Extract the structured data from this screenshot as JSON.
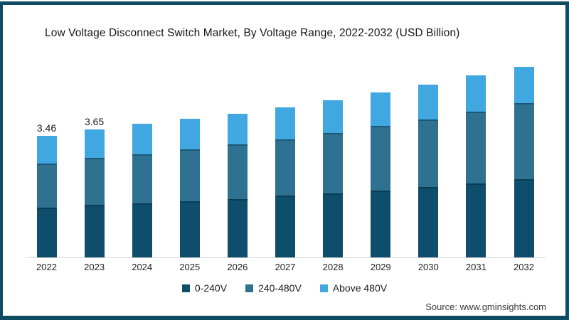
{
  "title": "Low Voltage Disconnect Switch Market, By Voltage Range, 2022-2032 (USD Billion)",
  "source": "Source: www.gminsights.com",
  "colors": {
    "frame_border": "#0f4c64",
    "axis_line": "#d8d8d8",
    "series_dark": "#0e4d6b",
    "series_medium": "#2f7191",
    "series_light": "#41a7e1"
  },
  "legend": [
    {
      "label": "0-240V",
      "color": "#0e4d6b"
    },
    {
      "label": "240-480V",
      "color": "#2f7191"
    },
    {
      "label": "Above 480V",
      "color": "#41a7e1"
    }
  ],
  "chart_data": {
    "type": "bar",
    "stacked": true,
    "title": "Low Voltage Disconnect Switch Market, By Voltage Range, 2022-2032 (USD Billion)",
    "xlabel": "",
    "ylabel": "USD Billion",
    "grid": false,
    "legend_position": "bottom",
    "categories": [
      "2022",
      "2023",
      "2024",
      "2025",
      "2026",
      "2027",
      "2028",
      "2029",
      "2030",
      "2031",
      "2032"
    ],
    "series": [
      {
        "name": "0-240V",
        "color": "#0e4d6b",
        "edge": "#0a3d54",
        "values": [
          1.42,
          1.5,
          1.54,
          1.6,
          1.66,
          1.77,
          1.82,
          1.91,
          2.01,
          2.11,
          2.22
        ]
      },
      {
        "name": "240-480V",
        "color": "#2f7191",
        "edge": "#1d5878",
        "values": [
          1.25,
          1.34,
          1.4,
          1.47,
          1.55,
          1.6,
          1.73,
          1.83,
          1.92,
          2.04,
          2.17
        ]
      },
      {
        "name": "Above 480V",
        "color": "#41a7e1",
        "edge": null,
        "values": [
          0.79,
          0.81,
          0.86,
          0.87,
          0.88,
          0.9,
          0.92,
          0.95,
          0.98,
          1.03,
          1.04
        ]
      }
    ],
    "totals": [
      3.46,
      3.65,
      3.8,
      3.94,
      4.09,
      4.27,
      4.47,
      4.69,
      4.91,
      5.18,
      5.43
    ],
    "data_labels": {
      "2022": "3.46",
      "2023": "3.65"
    },
    "ylim": [
      0,
      5.6
    ]
  }
}
